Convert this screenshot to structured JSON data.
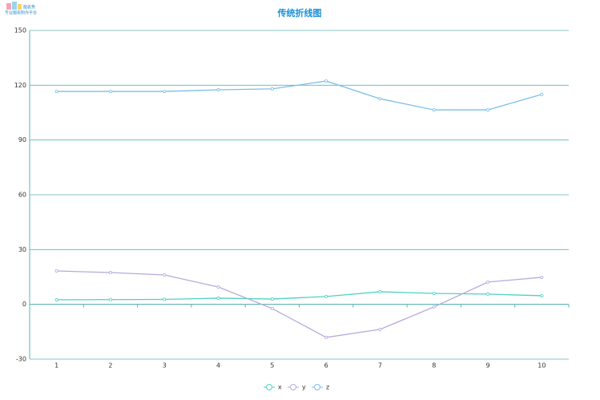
{
  "logo": {
    "name": "图表秀",
    "slogan": "专业图表制作平台"
  },
  "chart_data": {
    "type": "line",
    "title": "传统折线图",
    "categories": [
      "1",
      "2",
      "3",
      "4",
      "5",
      "6",
      "7",
      "8",
      "9",
      "10"
    ],
    "series": [
      {
        "name": "x",
        "color": "#4fd1c5",
        "values": [
          2.5,
          2.6,
          2.7,
          3.4,
          2.9,
          4.3,
          6.9,
          6,
          5.6,
          4.7
        ]
      },
      {
        "name": "y",
        "color": "#b8a9dc",
        "values": [
          18.3,
          17.4,
          16.1,
          9.5,
          -2.3,
          -18.1,
          -13.7,
          -1.4,
          12.2,
          14.8
        ]
      },
      {
        "name": "z",
        "color": "#7bbfe8",
        "values": [
          116.6,
          116.6,
          116.6,
          117.5,
          118,
          122.3,
          112.6,
          106.5,
          106.5,
          115
        ]
      }
    ],
    "ylim": [
      -30,
      150
    ],
    "yticks": [
      -30,
      0,
      30,
      60,
      90,
      120,
      150
    ],
    "grid": true,
    "legend": "bottom"
  }
}
